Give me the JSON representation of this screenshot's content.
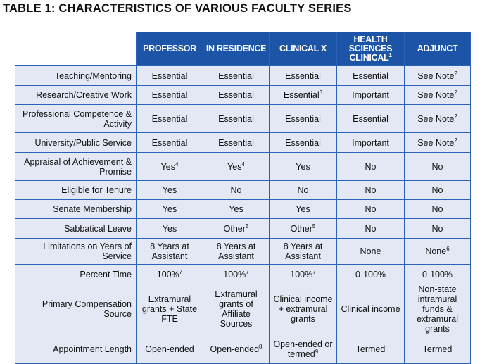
{
  "title": "TABLE 1:  CHARACTERISTICS OF VARIOUS FACULTY SERIES",
  "colors": {
    "header_bg": "#1c55a7",
    "cell_bg": "#e3e8f4",
    "border": "#2a63b6"
  },
  "columns": [
    {
      "text": "PROFESSOR",
      "sup": ""
    },
    {
      "text": "IN RESIDENCE",
      "sup": ""
    },
    {
      "text": "CLINICAL X",
      "sup": ""
    },
    {
      "text": "HEALTH SCIENCES CLINICAL",
      "sup": "1"
    },
    {
      "text": "ADJUNCT",
      "sup": ""
    }
  ],
  "rows": [
    {
      "label": "Teaching/Mentoring",
      "cells": [
        {
          "text": "Essential"
        },
        {
          "text": "Essential"
        },
        {
          "text": "Essential"
        },
        {
          "text": "Essential"
        },
        {
          "text": "See Note",
          "sup": "2"
        }
      ]
    },
    {
      "label": "Research/Creative Work",
      "cells": [
        {
          "text": "Essential"
        },
        {
          "text": "Essential"
        },
        {
          "text": "Essential",
          "sup": "3"
        },
        {
          "text": "Important"
        },
        {
          "text": "See Note",
          "sup": "2"
        }
      ]
    },
    {
      "label": "Professional Competence & Activity",
      "cells": [
        {
          "text": "Essential"
        },
        {
          "text": "Essential"
        },
        {
          "text": "Essential"
        },
        {
          "text": "Essential"
        },
        {
          "text": "See Note",
          "sup": "2"
        }
      ]
    },
    {
      "label": "University/Public Service",
      "cells": [
        {
          "text": "Essential"
        },
        {
          "text": "Essential"
        },
        {
          "text": "Essential"
        },
        {
          "text": "Important"
        },
        {
          "text": "See Note",
          "sup": "2"
        }
      ]
    },
    {
      "label": "Appraisal of Achievement & Promise",
      "cells": [
        {
          "text": "Yes",
          "sup": "4"
        },
        {
          "text": "Yes",
          "sup": "4"
        },
        {
          "text": "Yes"
        },
        {
          "text": "No"
        },
        {
          "text": "No"
        }
      ]
    },
    {
      "label": "Eligible for Tenure",
      "cells": [
        {
          "text": "Yes"
        },
        {
          "text": "No"
        },
        {
          "text": "No"
        },
        {
          "text": "No"
        },
        {
          "text": "No"
        }
      ]
    },
    {
      "label": "Senate Membership",
      "cells": [
        {
          "text": "Yes"
        },
        {
          "text": "Yes"
        },
        {
          "text": "Yes"
        },
        {
          "text": "No"
        },
        {
          "text": "No"
        }
      ]
    },
    {
      "label": "Sabbatical Leave",
      "cells": [
        {
          "text": "Yes"
        },
        {
          "text": "Other",
          "sup": "5"
        },
        {
          "text": "Other",
          "sup": "5"
        },
        {
          "text": "No"
        },
        {
          "text": "No"
        }
      ]
    },
    {
      "label": "Limitations on Years of Service",
      "cells": [
        {
          "text": "8 Years at Assistant"
        },
        {
          "text": "8 Years at Assistant"
        },
        {
          "text": "8 Years at Assistant"
        },
        {
          "text": "None"
        },
        {
          "text": "None",
          "sup": "6"
        }
      ]
    },
    {
      "label": "Percent Time",
      "cells": [
        {
          "text": "100%",
          "sup": "7"
        },
        {
          "text": "100%",
          "sup": "7"
        },
        {
          "text": "100%",
          "sup": "7"
        },
        {
          "text": "0-100%"
        },
        {
          "text": "0-100%"
        }
      ]
    },
    {
      "label": "Primary Compensation Source",
      "cells": [
        {
          "text": "Extramural grants + State FTE"
        },
        {
          "text": "Extramural grants of Affiliate Sources"
        },
        {
          "text": "Clinical income + extramural grants"
        },
        {
          "text": "Clinical income"
        },
        {
          "text": "Non-state intramural funds & extramural grants"
        }
      ]
    },
    {
      "label": "Appointment Length",
      "cells": [
        {
          "text": "Open-ended"
        },
        {
          "text": "Open-ended",
          "sup": "8"
        },
        {
          "text": "Open-ended or termed",
          "sup": "9"
        },
        {
          "text": "Termed"
        },
        {
          "text": "Termed"
        }
      ]
    }
  ]
}
